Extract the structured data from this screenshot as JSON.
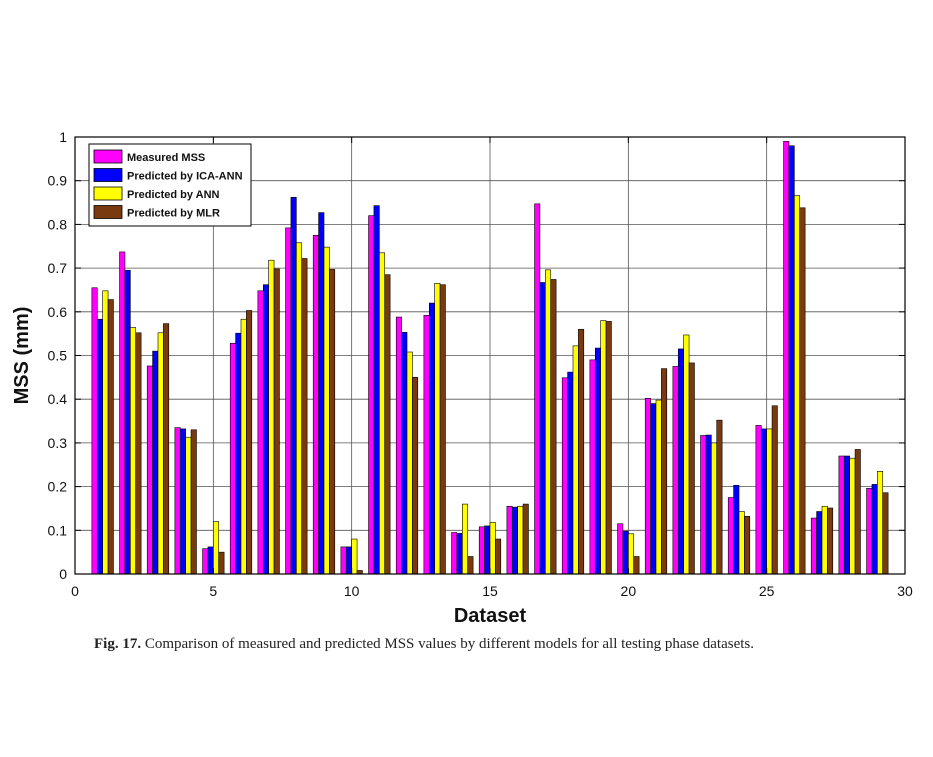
{
  "chart_data": {
    "type": "bar",
    "xlabel": "Dataset",
    "ylabel": "MSS (mm)",
    "xlim": [
      0,
      30
    ],
    "ylim": [
      0,
      1
    ],
    "xticks": [
      "0",
      "5",
      "10",
      "15",
      "20",
      "25",
      "30"
    ],
    "yticks": [
      "0",
      "0.1",
      "0.2",
      "0.3",
      "0.4",
      "0.5",
      "0.6",
      "0.7",
      "0.8",
      "0.9",
      "1"
    ],
    "grid": true,
    "legend_position": "top-left",
    "categories": [
      1,
      2,
      3,
      4,
      5,
      6,
      7,
      8,
      9,
      10,
      11,
      12,
      13,
      14,
      15,
      16,
      17,
      18,
      19,
      20,
      21,
      22,
      23,
      24,
      25,
      26,
      27,
      28,
      29
    ],
    "series": [
      {
        "name": "Measured MSS",
        "color": "#ff00ff",
        "values": [
          0.655,
          0.737,
          0.476,
          0.335,
          0.058,
          0.528,
          0.648,
          0.792,
          0.775,
          0.062,
          0.82,
          0.588,
          0.592,
          0.095,
          0.108,
          0.155,
          0.847,
          0.449,
          0.49,
          0.115,
          0.402,
          0.475,
          0.317,
          0.175,
          0.34,
          0.99,
          0.128,
          0.27,
          0.196
        ]
      },
      {
        "name": "Predicted by ICA-ANN",
        "color": "#0000ff",
        "values": [
          0.583,
          0.695,
          0.51,
          0.332,
          0.062,
          0.551,
          0.662,
          0.862,
          0.827,
          0.062,
          0.843,
          0.553,
          0.62,
          0.093,
          0.11,
          0.153,
          0.667,
          0.462,
          0.517,
          0.098,
          0.39,
          0.515,
          0.318,
          0.203,
          0.332,
          0.98,
          0.143,
          0.27,
          0.205
        ]
      },
      {
        "name": "Predicted by ANN",
        "color": "#ffff00",
        "values": [
          0.648,
          0.564,
          0.552,
          0.313,
          0.12,
          0.583,
          0.718,
          0.758,
          0.748,
          0.08,
          0.735,
          0.508,
          0.665,
          0.16,
          0.118,
          0.155,
          0.696,
          0.522,
          0.58,
          0.092,
          0.398,
          0.547,
          0.3,
          0.143,
          0.332,
          0.866,
          0.155,
          0.265,
          0.235
        ]
      },
      {
        "name": "Predicted by MLR",
        "color": "#7a3a10",
        "values": [
          0.628,
          0.552,
          0.573,
          0.33,
          0.05,
          0.603,
          0.698,
          0.722,
          0.697,
          0.008,
          0.685,
          0.45,
          0.662,
          0.04,
          0.08,
          0.16,
          0.674,
          0.56,
          0.578,
          0.04,
          0.47,
          0.483,
          0.352,
          0.132,
          0.385,
          0.838,
          0.151,
          0.285,
          0.186
        ]
      }
    ]
  },
  "caption": {
    "label": "Fig. 17.",
    "text": " Comparison of measured and predicted MSS values by different models for all testing phase datasets."
  }
}
